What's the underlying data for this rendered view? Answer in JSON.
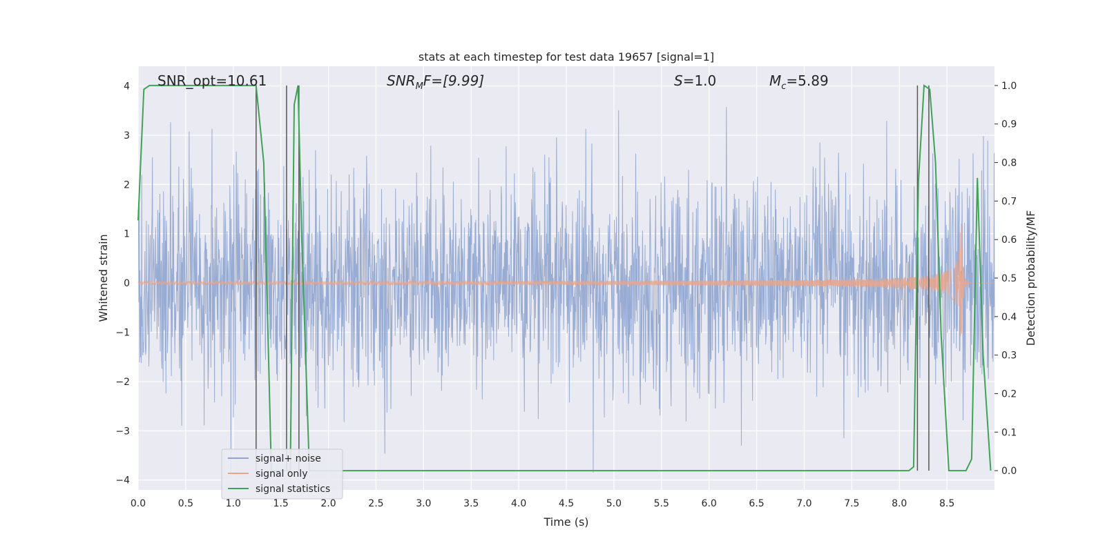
{
  "chart_data": {
    "type": "line",
    "title": "stats at each timestep for test data 19657 [signal=1]",
    "xlabel": "Time (s)",
    "ylabel": "Whitened strain",
    "ylabel_right": "Detection probability/MF",
    "xlim": [
      0.0,
      9.0
    ],
    "ylim": [
      -4.2,
      4.4
    ],
    "ylim_right": [
      -0.05,
      1.05
    ],
    "x_ticks": [
      "0.0",
      "0.5",
      "1.0",
      "1.5",
      "2.0",
      "2.5",
      "3.0",
      "3.5",
      "4.0",
      "4.5",
      "5.0",
      "5.5",
      "6.0",
      "6.5",
      "7.0",
      "7.5",
      "8.0",
      "8.5"
    ],
    "y_ticks": [
      "−4",
      "−3",
      "−2",
      "−1",
      "0",
      "1",
      "2",
      "3",
      "4"
    ],
    "y_ticks_right": [
      "0.0",
      "0.1",
      "0.2",
      "0.3",
      "0.4",
      "0.5",
      "0.6",
      "0.7",
      "0.8",
      "0.9",
      "1.0"
    ],
    "grid": true,
    "legend_position": "lower-left",
    "annotations": {
      "snr_opt": "SNR_opt=10.61",
      "snr_mf_prefix": "SNR",
      "snr_mf_sub": "M",
      "snr_mf_suffix": "F=[9.99]",
      "s_label": "S",
      "s_value": "=1.0",
      "mc_label": "M",
      "mc_sub": "c",
      "mc_value": "=5.89"
    },
    "series": [
      {
        "name": "signal+ noise",
        "color": "#8fa4cf",
        "description_values": {
          "noise_std": 1.0,
          "peak_abs": 4.0
        }
      },
      {
        "name": "signal only",
        "color": "#e8a58b",
        "chirp": {
          "t_start": 0.0,
          "t_merge": 8.65,
          "amp_start": 0.03,
          "amp_peak": 1.4
        }
      },
      {
        "name": "signal statistics",
        "color": "#3ea356",
        "axis": "right",
        "x": [
          0.0,
          0.06,
          0.12,
          0.2,
          1.2,
          1.24,
          1.32,
          1.4,
          1.48,
          1.55,
          1.6,
          1.64,
          1.68,
          1.72,
          1.8,
          1.9,
          2.0,
          8.1,
          8.15,
          8.2,
          8.26,
          8.32,
          8.38,
          8.44,
          8.52,
          8.6,
          8.7,
          8.76,
          8.82,
          8.88,
          8.96
        ],
        "y": [
          0.65,
          0.99,
          1.0,
          1.0,
          1.0,
          1.0,
          0.8,
          0.0,
          0.0,
          0.0,
          0.0,
          0.95,
          1.0,
          0.6,
          0.0,
          0.0,
          0.0,
          0.0,
          0.01,
          0.75,
          1.0,
          0.99,
          0.8,
          0.35,
          0.0,
          0.0,
          0.0,
          0.03,
          0.76,
          0.3,
          0.0
        ]
      }
    ],
    "vertical_lines": [
      1.24,
      1.56,
      1.69,
      8.19,
      8.31
    ],
    "legend": [
      "signal+ noise",
      "signal only",
      "signal statistics"
    ]
  }
}
